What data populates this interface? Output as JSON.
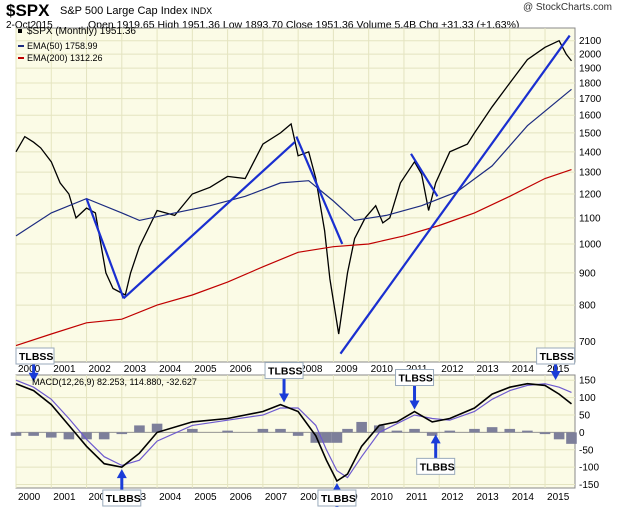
{
  "header": {
    "symbol": "$SPX",
    "name": "S&P 500 Large Cap Index",
    "exchange": "INDX",
    "watermark": "@ StockCharts.com",
    "date": "2-Oct2015",
    "quote": "Open 1919.65  High 1951.36  Low 1893.70  Close 1951.36  Volume 5.4B  Chg +31.33 (+1.63%)"
  },
  "legend": {
    "price": "$SPX (Monthly) 1951.36",
    "ema50": "EMA(50) 1758.99",
    "ema200": "EMA(200) 1312.26",
    "macd": "MACD(12,26,9) 82.253, 114.880, -32.627"
  },
  "colors": {
    "panel_bg": "#fbfbe6",
    "grid": "#e4e4c0",
    "price": "#000000",
    "ema50": "#1c2b80",
    "ema200": "#c00000",
    "trendline": "#1a2fd0",
    "macd_line": "#000000",
    "signal_line": "#6e5acf",
    "histogram": "#7d7f9a",
    "callout_arrow": "#1a3cd8"
  },
  "chart_data": [
    {
      "type": "line",
      "title": "$SPX (Monthly)",
      "y_scale": "log",
      "ylim": [
        650,
        2200
      ],
      "xlim": [
        2000,
        2015.85
      ],
      "y_ticks": [
        700,
        800,
        900,
        1000,
        1100,
        1200,
        1300,
        1400,
        1500,
        1600,
        1700,
        1800,
        1900,
        2000,
        2100
      ],
      "x_ticks": [
        "2000",
        "2001",
        "2002",
        "2003",
        "2004",
        "2005",
        "2006",
        "2007",
        "2008",
        "2009",
        "2010",
        "2011",
        "2012",
        "2013",
        "2014",
        "2015"
      ],
      "series": [
        {
          "name": "$SPX (Monthly)",
          "x": [
            2000.0,
            2000.25,
            2000.5,
            2000.7,
            2001.0,
            2001.25,
            2001.5,
            2001.7,
            2002.0,
            2002.25,
            2002.55,
            2002.75,
            2003.1,
            2003.25,
            2003.5,
            2004.0,
            2004.5,
            2005.0,
            2005.5,
            2006.0,
            2006.5,
            2007.0,
            2007.5,
            2007.8,
            2008.0,
            2008.3,
            2008.5,
            2008.75,
            2008.9,
            2009.15,
            2009.4,
            2009.6,
            2009.9,
            2010.2,
            2010.4,
            2010.6,
            2010.9,
            2011.3,
            2011.5,
            2011.7,
            2011.9,
            2012.3,
            2012.8,
            2013.0,
            2013.5,
            2014.0,
            2014.5,
            2015.0,
            2015.4,
            2015.6,
            2015.75
          ],
          "y": [
            1400,
            1480,
            1450,
            1420,
            1350,
            1250,
            1200,
            1100,
            1140,
            1120,
            900,
            850,
            830,
            900,
            990,
            1130,
            1110,
            1200,
            1230,
            1280,
            1270,
            1440,
            1500,
            1550,
            1380,
            1400,
            1270,
            1050,
            880,
            720,
            900,
            1020,
            1100,
            1150,
            1080,
            1100,
            1250,
            1350,
            1290,
            1130,
            1250,
            1400,
            1440,
            1500,
            1650,
            1800,
            1960,
            2050,
            2100,
            2000,
            1951
          ]
        },
        {
          "name": "EMA(50)",
          "x": [
            2000.0,
            2001.0,
            2002.0,
            2003.0,
            2003.5,
            2004.5,
            2005.5,
            2006.5,
            2007.5,
            2008.3,
            2009.0,
            2009.6,
            2010.5,
            2011.5,
            2012.5,
            2013.5,
            2014.5,
            2015.75
          ],
          "y": [
            1030,
            1120,
            1180,
            1120,
            1090,
            1120,
            1150,
            1190,
            1250,
            1260,
            1170,
            1090,
            1110,
            1150,
            1210,
            1330,
            1540,
            1759
          ]
        },
        {
          "name": "EMA(200)",
          "x": [
            2000.0,
            2001.0,
            2002.0,
            2003.0,
            2004.0,
            2005.0,
            2006.0,
            2007.0,
            2008.0,
            2009.0,
            2010.0,
            2011.0,
            2012.0,
            2013.0,
            2014.0,
            2015.0,
            2015.75
          ],
          "y": [
            690,
            720,
            750,
            760,
            800,
            830,
            870,
            920,
            970,
            990,
            1000,
            1030,
            1070,
            1120,
            1190,
            1270,
            1312
          ]
        }
      ],
      "trendlines": [
        {
          "x": [
            2002.0,
            2003.05
          ],
          "y": [
            1180,
            820
          ]
        },
        {
          "x": [
            2003.05,
            2007.9
          ],
          "y": [
            820,
            1450
          ]
        },
        {
          "x": [
            2007.95,
            2009.25
          ],
          "y": [
            1480,
            1000
          ]
        },
        {
          "x": [
            2009.2,
            2015.7
          ],
          "y": [
            670,
            2140
          ]
        },
        {
          "x": [
            2011.2,
            2011.95
          ],
          "y": [
            1390,
            1190
          ]
        }
      ]
    },
    {
      "type": "line",
      "title": "MACD(12,26,9)",
      "ylim": [
        -160,
        165
      ],
      "xlim": [
        2000,
        2015.85
      ],
      "y_ticks": [
        -150,
        -100,
        -50,
        0,
        50,
        100,
        150
      ],
      "x_ticks": [
        "2000",
        "2001",
        "2002",
        "2003",
        "2004",
        "2005",
        "2006",
        "2007",
        "2008",
        "2009",
        "2010",
        "2011",
        "2012",
        "2013",
        "2014",
        "2015"
      ],
      "series": [
        {
          "name": "MACD",
          "x": [
            2000.0,
            2000.5,
            2001.0,
            2001.5,
            2002.0,
            2002.5,
            2003.0,
            2003.5,
            2004.0,
            2005.0,
            2006.0,
            2007.0,
            2007.5,
            2008.0,
            2008.5,
            2008.8,
            2009.1,
            2009.4,
            2009.8,
            2010.3,
            2010.8,
            2011.3,
            2011.8,
            2012.3,
            2013.0,
            2013.5,
            2014.0,
            2014.5,
            2015.0,
            2015.4,
            2015.75
          ],
          "y": [
            140,
            120,
            80,
            20,
            -40,
            -90,
            -100,
            -60,
            0,
            30,
            40,
            60,
            80,
            60,
            -10,
            -80,
            -140,
            -120,
            -40,
            20,
            30,
            60,
            30,
            40,
            70,
            110,
            130,
            140,
            135,
            110,
            82
          ]
        },
        {
          "name": "Signal",
          "x": [
            2000.0,
            2000.5,
            2001.0,
            2001.5,
            2002.0,
            2002.5,
            2003.0,
            2003.5,
            2004.0,
            2005.0,
            2006.0,
            2007.0,
            2007.5,
            2008.0,
            2008.5,
            2008.8,
            2009.1,
            2009.4,
            2009.8,
            2010.3,
            2010.8,
            2011.3,
            2011.8,
            2012.3,
            2013.0,
            2013.5,
            2014.0,
            2014.5,
            2015.0,
            2015.4,
            2015.75
          ],
          "y": [
            150,
            130,
            95,
            40,
            -20,
            -70,
            -95,
            -80,
            -25,
            20,
            35,
            50,
            70,
            70,
            20,
            -50,
            -110,
            -130,
            -70,
            0,
            25,
            50,
            40,
            35,
            60,
            95,
            120,
            135,
            140,
            130,
            115
          ]
        },
        {
          "name": "Histogram",
          "x": [
            2000.0,
            2000.5,
            2001.0,
            2001.5,
            2002.0,
            2002.5,
            2003.0,
            2003.5,
            2004.0,
            2005.0,
            2006.0,
            2007.0,
            2007.5,
            2008.0,
            2008.5,
            2008.8,
            2009.1,
            2009.4,
            2009.8,
            2010.3,
            2010.8,
            2011.3,
            2011.8,
            2012.3,
            2013.0,
            2013.5,
            2014.0,
            2014.5,
            2015.0,
            2015.4,
            2015.75
          ],
          "y": [
            -10,
            -10,
            -15,
            -20,
            -20,
            -20,
            -5,
            20,
            25,
            10,
            5,
            10,
            10,
            -10,
            -30,
            -30,
            -30,
            10,
            30,
            20,
            5,
            10,
            -10,
            5,
            10,
            15,
            10,
            5,
            -5,
            -20,
            -33
          ]
        }
      ],
      "callouts": [
        {
          "text": "TLBSS",
          "x": 2000.5,
          "y": 140,
          "position": "above"
        },
        {
          "text": "TLBBS",
          "x": 2003.0,
          "y": -100,
          "position": "below"
        },
        {
          "text": "TLBSS",
          "x": 2007.6,
          "y": 80,
          "position": "above"
        },
        {
          "text": "TLBBS",
          "x": 2009.1,
          "y": -140,
          "position": "below"
        },
        {
          "text": "TLBSS",
          "x": 2011.3,
          "y": 60,
          "position": "above"
        },
        {
          "text": "TLBBS",
          "x": 2011.9,
          "y": 0,
          "position": "below"
        },
        {
          "text": "TLBSS",
          "x": 2015.3,
          "y": 145,
          "position": "above"
        }
      ]
    }
  ]
}
